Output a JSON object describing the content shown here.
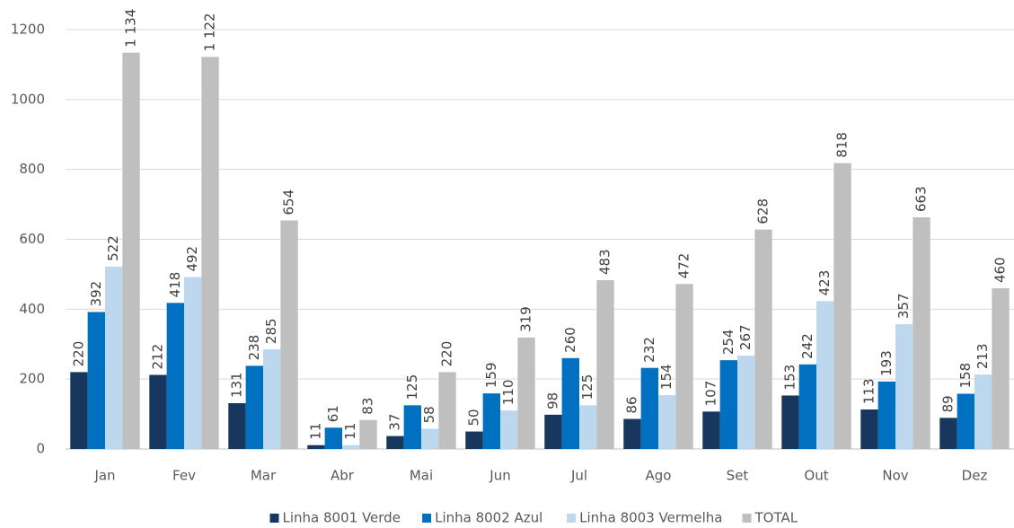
{
  "chart_data": {
    "type": "bar",
    "categories": [
      "Jan",
      "Fev",
      "Mar",
      "Abr",
      "Mai",
      "Jun",
      "Jul",
      "Ago",
      "Set",
      "Out",
      "Nov",
      "Dez"
    ],
    "series": [
      {
        "name": "Linha 8001 Verde",
        "color": "#17375e",
        "values": [
          220,
          212,
          131,
          11,
          37,
          50,
          98,
          86,
          107,
          153,
          113,
          89
        ]
      },
      {
        "name": "Linha 8002 Azul",
        "color": "#0070c0",
        "values": [
          392,
          418,
          238,
          61,
          125,
          159,
          260,
          232,
          254,
          242,
          193,
          158
        ]
      },
      {
        "name": "Linha 8003 Vermelha",
        "color": "#bdd7ee",
        "values": [
          522,
          492,
          285,
          11,
          58,
          110,
          125,
          154,
          267,
          423,
          357,
          213
        ]
      },
      {
        "name": "TOTAL",
        "color": "#bfbfbf",
        "values": [
          1134,
          1122,
          654,
          83,
          220,
          319,
          483,
          472,
          628,
          818,
          663,
          460
        ],
        "value_labels": [
          "1 134",
          "1 122",
          "654",
          "83",
          "220",
          "319",
          "483",
          "472",
          "628",
          "818",
          "663",
          "460"
        ]
      }
    ],
    "ylim": [
      0,
      1200
    ],
    "yticks": [
      0,
      200,
      400,
      600,
      800,
      1000,
      1200
    ],
    "grid": true,
    "legend": "bottom"
  }
}
